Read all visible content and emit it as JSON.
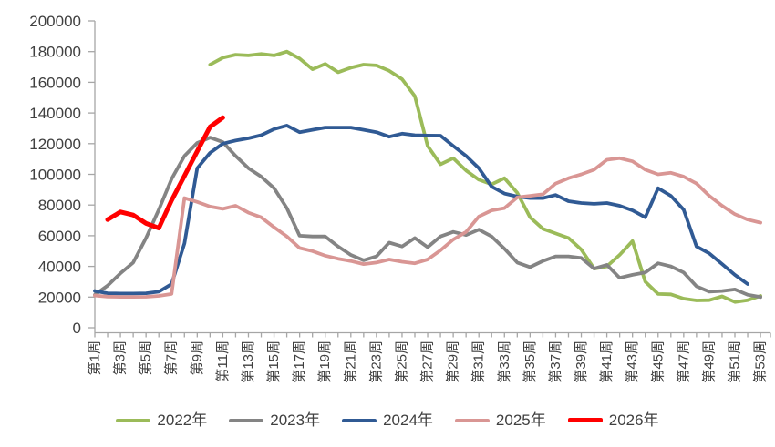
{
  "chart_data": {
    "type": "line",
    "title": "",
    "legend_position": "bottom",
    "grid": false,
    "background": "#ffffff",
    "axis_color": "#a6a6a6",
    "label_color": "#404040",
    "y_axis": {
      "min": 0,
      "max": 200000,
      "step": 20000,
      "tick_labels": [
        "0",
        "20000",
        "40000",
        "60000",
        "80000",
        "100000",
        "120000",
        "140000",
        "160000",
        "180000",
        "200000"
      ]
    },
    "x_axis": {
      "weeks": 53,
      "tick_label_every": 2,
      "tick_labels": [
        "第1周",
        "第3周",
        "第5周",
        "第7周",
        "第9周",
        "第11周",
        "第13周",
        "第15周",
        "第17周",
        "第19周",
        "第21周",
        "第23周",
        "第25周",
        "第27周",
        "第29周",
        "第31周",
        "第33周",
        "第35周",
        "第37周",
        "第39周",
        "第41周",
        "第43周",
        "第45周",
        "第47周",
        "第49周",
        "第51周",
        "第53周"
      ]
    },
    "series": [
      {
        "id": "2022",
        "name": "2022年",
        "color": "#9BBB59",
        "start_week": 10,
        "values": [
          171500,
          176000,
          178000,
          177500,
          178500,
          177500,
          180000,
          175500,
          168500,
          172000,
          166500,
          169500,
          171500,
          171000,
          167500,
          162000,
          151000,
          118500,
          106500,
          110500,
          102500,
          96500,
          93500,
          97500,
          88000,
          72000,
          64500,
          61500,
          58500,
          51000,
          38500,
          40000,
          47500,
          56500,
          30000,
          22000,
          21800,
          19000,
          17800,
          18000,
          20500,
          16800,
          18000,
          20800
        ]
      },
      {
        "id": "2023",
        "name": "2023年",
        "color": "#848484",
        "start_week": 1,
        "values": [
          21500,
          27500,
          35500,
          42500,
          58500,
          77000,
          97000,
          112000,
          120500,
          124000,
          121000,
          112000,
          104000,
          98500,
          91000,
          78000,
          60000,
          59500,
          59500,
          53000,
          47500,
          44000,
          46500,
          55500,
          53000,
          58500,
          52500,
          59500,
          62500,
          60500,
          64000,
          59500,
          51500,
          42500,
          39500,
          43500,
          46500,
          46500,
          45500,
          38500,
          41000,
          32500,
          34500,
          36000,
          42000,
          40000,
          36000,
          27000,
          23500,
          24000,
          25000,
          21500,
          20000
        ]
      },
      {
        "id": "2024",
        "name": "2024年",
        "color": "#305A94",
        "start_week": 1,
        "values": [
          24000,
          22500,
          22300,
          22300,
          22500,
          23500,
          28500,
          55000,
          104000,
          114000,
          120000,
          122000,
          123500,
          125500,
          129500,
          131800,
          127500,
          129000,
          130500,
          130500,
          130500,
          129000,
          127500,
          124500,
          126500,
          125500,
          125300,
          125200,
          118500,
          112000,
          104000,
          92000,
          87500,
          85500,
          84500,
          84500,
          86500,
          82500,
          81300,
          80800,
          81300,
          79500,
          76500,
          72000,
          91000,
          86000,
          77000,
          53000,
          48500,
          41500,
          34500,
          28500
        ]
      },
      {
        "id": "2025",
        "name": "2025年",
        "color": "#D99694",
        "start_week": 1,
        "values": [
          21000,
          20300,
          20100,
          20100,
          20200,
          20800,
          22000,
          84500,
          82000,
          79000,
          77500,
          79500,
          75000,
          72000,
          65500,
          59500,
          52000,
          50000,
          47000,
          45000,
          43500,
          41500,
          42500,
          44500,
          43000,
          42000,
          44500,
          50500,
          57500,
          62500,
          72500,
          76500,
          78000,
          85000,
          86000,
          87000,
          94000,
          97500,
          100000,
          103000,
          109500,
          110500,
          108500,
          103000,
          100000,
          101000,
          98500,
          94000,
          86000,
          79500,
          74000,
          70500,
          68500
        ]
      },
      {
        "id": "2026",
        "name": "2026年",
        "color": "#FF0000",
        "start_week": 2,
        "values": [
          70500,
          75500,
          73500,
          68000,
          65000,
          83000,
          99000,
          115000,
          131000,
          137000
        ]
      }
    ]
  }
}
